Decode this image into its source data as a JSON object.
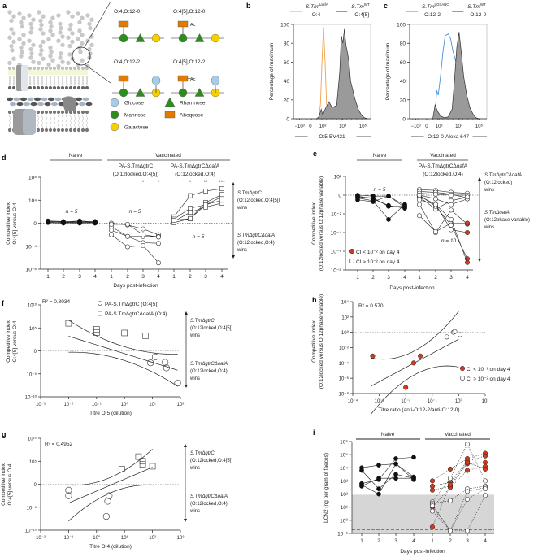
{
  "figure": {
    "panel_letters": [
      "a",
      "b",
      "c",
      "d",
      "e",
      "f",
      "g",
      "h",
      "i"
    ],
    "colors": {
      "orange": "#f0a050",
      "blue": "#4a90d9",
      "red": "#d23c1e",
      "fill_gray": "#9a9a9a",
      "shade_gray": "#d6d6d6",
      "glucose": "#a8cce8",
      "mannose": "#2e8b1e",
      "galactose": "#f5d000",
      "rhamnose": "#2e8b1e",
      "abequose": "#e07b00"
    }
  },
  "panel_a": {
    "structures": [
      {
        "label": "O:4,O:12-0",
        "abequose": true,
        "acetyl": false,
        "glucose": false
      },
      {
        "label": "O:4[5],O:12-0",
        "abequose": true,
        "acetyl": true,
        "glucose": false
      },
      {
        "label": "O:4,O:12-2",
        "abequose": true,
        "acetyl": false,
        "glucose": true
      },
      {
        "label": "O:4[5],O:12-2",
        "abequose": true,
        "acetyl": true,
        "glucose": true
      }
    ],
    "acetyl_label": "Ac",
    "legend": [
      {
        "name": "Glucose",
        "shape": "circle"
      },
      {
        "name": "Mannose",
        "shape": "circle"
      },
      {
        "name": "Galactose",
        "shape": "circle"
      },
      {
        "name": "Rhamnose",
        "shape": "triangle"
      },
      {
        "name": "Abequose",
        "shape": "rectangle"
      }
    ]
  },
  "chart_data": [
    {
      "panel": "b",
      "type": "area",
      "ylabel": "Percentage of maximum",
      "xlabel": "O:5-BV421",
      "ylim": [
        0,
        100
      ],
      "yticks": [
        "0",
        "20",
        "40",
        "60",
        "80",
        "100"
      ],
      "xticks": [
        "−10³",
        "0",
        "10³",
        "10⁴",
        "10⁵"
      ],
      "legend": [
        {
          "name": "S.TmΔoafA",
          "sub": "O:4",
          "color": "#f0a050"
        },
        {
          "name": "S.TmWT",
          "sub": "O:4[5]",
          "color": "#333333"
        }
      ],
      "series": [
        {
          "name": "S.TmΔoafA O:4",
          "x": [
            0.3,
            0.33,
            0.35,
            0.37,
            0.39,
            0.41,
            0.43,
            0.46,
            0.5,
            0.55
          ],
          "y": [
            0,
            2,
            15,
            60,
            97,
            60,
            15,
            4,
            1,
            0
          ]
        },
        {
          "name": "S.TmWT O:4[5]",
          "x": [
            0.3,
            0.33,
            0.36,
            0.38,
            0.41,
            0.46,
            0.5,
            0.53,
            0.56,
            0.6,
            0.62,
            0.64,
            0.66,
            0.68,
            0.7,
            0.72,
            0.74,
            0.77,
            0.8,
            0.84,
            0.88,
            0.92,
            0.96
          ],
          "y": [
            0,
            2,
            10,
            4,
            10,
            18,
            12,
            13,
            14,
            50,
            88,
            80,
            95,
            78,
            70,
            60,
            40,
            30,
            20,
            10,
            4,
            1,
            0
          ]
        }
      ]
    },
    {
      "panel": "c",
      "type": "area",
      "ylabel": "Percentage of maximum",
      "xlabel": "O:12-0-Alexa 647",
      "ylim": [
        0,
        100
      ],
      "yticks": [
        "0",
        "20",
        "40",
        "60",
        "80",
        "100"
      ],
      "xticks": [
        "−10³",
        "0",
        "10³",
        "10⁴",
        "10⁵"
      ],
      "legend": [
        {
          "name": "S.Tm pGtrABC",
          "sub": "O:12-2",
          "color": "#4a90d9"
        },
        {
          "name": "S.TmWT",
          "sub": "O:12-0",
          "color": "#333333"
        }
      ],
      "series": [
        {
          "name": "S.Tm pGtrABC O:12-2",
          "x": [
            0.3,
            0.33,
            0.35,
            0.37,
            0.4,
            0.43,
            0.46,
            0.5,
            0.53,
            0.56,
            0.6,
            0.63,
            0.66,
            0.7,
            0.74,
            0.78,
            0.82,
            0.86
          ],
          "y": [
            0,
            5,
            30,
            25,
            45,
            70,
            88,
            90,
            85,
            72,
            60,
            50,
            40,
            30,
            18,
            8,
            2,
            0
          ]
        },
        {
          "name": "S.TmWT O:12-0",
          "x": [
            0.3,
            0.33,
            0.36,
            0.4,
            0.45,
            0.5,
            0.55,
            0.58,
            0.61,
            0.64,
            0.67,
            0.7,
            0.74,
            0.78,
            0.82,
            0.86,
            0.9
          ],
          "y": [
            0,
            15,
            8,
            3,
            1,
            2,
            10,
            40,
            75,
            92,
            70,
            45,
            25,
            12,
            5,
            1,
            0
          ]
        }
      ]
    },
    {
      "panel": "d",
      "type": "line",
      "ylabel": "Competitive index O:4[5] versus O:4",
      "xlabel": "Days post-infection",
      "yticks": [
        "10⁸",
        "10⁴",
        "0",
        "10⁻⁴",
        "10⁻⁸"
      ],
      "ylim_log10": [
        -8,
        8
      ],
      "groups": [
        "Naive",
        "Vaccinated"
      ],
      "subgroups": [
        {
          "name": "PA-S.TmΔgtrC",
          "sub": "(O:12locked,O:4[5])",
          "stars": [
            "",
            "",
            "*",
            "*"
          ]
        },
        {
          "name": "PA-S.TmΔgtrCΔoafA",
          "sub": "(O:12locked,O:4)",
          "stars": [
            "",
            "*",
            "**",
            "***"
          ]
        }
      ],
      "n_labels": [
        "n = 5",
        "n = 5",
        "n = 5"
      ],
      "annotations": [
        {
          "text": "S.TmΔgtrC (O:12locked,O:4[5]) wins"
        },
        {
          "text": "S.TmΔgtrCΔoafA (O:12locked,O:4) wins"
        }
      ],
      "x_days": [
        1,
        2,
        3,
        4
      ],
      "series": [
        {
          "name": "Naive",
          "marker": "filled-circle",
          "lines": [
            [
              0.3,
              0.2,
              0.4,
              0.2
            ],
            [
              0.2,
              0.1,
              0.0,
              0.1
            ],
            [
              0.4,
              0.3,
              0.2,
              0.3
            ],
            [
              0.1,
              0.0,
              0.3,
              0.0
            ],
            [
              0.3,
              0.2,
              0.1,
              0.2
            ]
          ]
        },
        {
          "name": "PA-S.TmΔgtrC",
          "marker": "open-circle",
          "lines": [
            [
              0,
              -0.3,
              -1.0,
              -2.0
            ],
            [
              -0.6,
              -2.3,
              -2.3,
              -2.3
            ],
            [
              -1.2,
              -2.3,
              -3.4,
              -3.5
            ],
            [
              -2.0,
              -4.1,
              -3.9,
              -6.9
            ],
            [
              -0.2,
              -0.2,
              -2.0,
              -2.4
            ]
          ]
        },
        {
          "name": "PA-S.TmΔgtrCΔoafA",
          "marker": "open-square",
          "lines": [
            [
              1.1,
              4.8,
              5.6,
              6.0
            ],
            [
              0.7,
              2.6,
              3.2,
              4.6
            ],
            [
              0.3,
              1.9,
              2.8,
              3.5
            ],
            [
              0.1,
              0.8,
              3.6,
              5.0
            ],
            [
              0.5,
              0.8,
              3.2,
              4.0
            ]
          ]
        }
      ]
    },
    {
      "panel": "e",
      "type": "line",
      "ylabel": "Competitive index (O:12locked versus O:12phase variable)",
      "xlabel": "Days post-infection",
      "yticks": [
        "10²",
        "0",
        "10⁻²",
        "10⁻⁴",
        "10⁻⁶",
        "10⁻⁸"
      ],
      "ylim_log10": [
        -8,
        2
      ],
      "groups": [
        "Naive",
        "Vaccinated"
      ],
      "subgroups": [
        {
          "name": "PA-S.TmΔgtrCΔoafA",
          "sub": "(O:12locked,O:4)"
        }
      ],
      "n_labels": [
        "n = 5",
        "n = 10"
      ],
      "legend": [
        {
          "text": "CI < 10⁻² on day 4",
          "marker": "red-filled"
        },
        {
          "text": "CI > 10⁻² on day 4",
          "marker": "open-circle"
        }
      ],
      "annotations": [
        {
          "text": "S.TmΔgtrCΔoafA (O:12locked) wins"
        },
        {
          "text": "S.TmΔoafA (O:12phase variable) wins"
        }
      ],
      "x_days": [
        1,
        2,
        3,
        4
      ],
      "series": [
        {
          "name": "Naive",
          "marker": "filled-circle",
          "lines": [
            [
              0,
              -0.1,
              -0.1,
              -1.1
            ],
            [
              -0.2,
              -0.3,
              -1.2,
              -1.2
            ],
            [
              -0.3,
              -0.6,
              -2.6,
              -1.0
            ],
            [
              -0.5,
              -0.7,
              -0.1,
              -1.3
            ],
            [
              -0.1,
              -0.4,
              -1.1,
              -1.4
            ]
          ]
        },
        {
          "name": "Vaccinated CI>1e-2",
          "marker": "open-circle",
          "lines": [
            [
              0.6,
              0.5,
              0.3,
              0.2
            ],
            [
              0.4,
              0.3,
              0.1,
              -0.3
            ],
            [
              0.2,
              0.1,
              0.0,
              0.0
            ],
            [
              0.0,
              -0.4,
              -1.0,
              -0.4
            ],
            [
              -0.2,
              -1.5,
              -0.6,
              -0.2
            ]
          ]
        },
        {
          "name": "Vaccinated CI<1e-2",
          "marker": "red-filled",
          "lines": [
            [
              -1.0,
              -4.0,
              -1.6,
              -3.1
            ],
            [
              -2.2,
              -3.9,
              -3.0,
              -3.0
            ],
            [
              -0.1,
              -1.0,
              -3.7,
              -4.0
            ],
            [
              0.0,
              -1.2,
              -3.2,
              -6.8
            ],
            [
              -0.5,
              -1.0,
              -2.6,
              -7.2
            ]
          ]
        }
      ]
    },
    {
      "panel": "f",
      "type": "scatter",
      "r2": "R² = 0.8034",
      "ylabel": "Competitive index O:4[5] versus O:4",
      "xlabel": "Titre O:5 (dilution)",
      "xticks": [
        "10⁻³",
        "10⁻²",
        "10⁻¹",
        "10⁰",
        "10¹",
        "10²"
      ],
      "yticks": [
        "10¹⁰",
        "10⁵",
        "0",
        "10⁻⁵",
        "10⁻¹⁰"
      ],
      "xlim_log10": [
        -3,
        2
      ],
      "ylim_log10": [
        -10,
        10
      ],
      "legend": [
        {
          "text": "PA-S.TmΔgtrC (O:4[5])",
          "marker": "open-circle"
        },
        {
          "text": "PA-S.TmΔgtrCΔoafA (O:4)",
          "marker": "open-square"
        }
      ],
      "annotations": [
        {
          "text": "S.TmΔgtrC (O:12locked,O:4[5]) wins"
        },
        {
          "text": "S.TmΔgtrCΔoafA (O:12locked,O:4) wins"
        }
      ],
      "circles": [
        [
          0.93,
          -2.6
        ],
        [
          1.1,
          -1.3
        ],
        [
          1.45,
          -2.5
        ],
        [
          1.5,
          -3.7
        ],
        [
          1.9,
          -7.0
        ]
      ],
      "squares": [
        [
          -2.0,
          6.0
        ],
        [
          -1.0,
          4.7
        ],
        [
          -1.0,
          4.0
        ],
        [
          0.0,
          3.9
        ],
        [
          0.75,
          3.3
        ]
      ],
      "fit": {
        "slope": -1.9,
        "intercept": -0.6,
        "ci": 2.5,
        "x": [
          -2.0,
          1.9
        ]
      }
    },
    {
      "panel": "g",
      "type": "scatter",
      "r2": "R² = 0.4952",
      "ylabel": "Competitive index O:4[5] versus O:4",
      "xlabel": "Titre O:4 (dilution)",
      "xticks": [
        "10⁻²",
        "10⁻¹",
        "10⁰",
        "10¹",
        "10²",
        "10³"
      ],
      "yticks": [
        "10¹⁰",
        "10⁵",
        "0",
        "10⁻⁵",
        "10⁻¹⁰"
      ],
      "xlim_log10": [
        -2,
        3
      ],
      "ylim_log10": [
        -10,
        10
      ],
      "annotations": [
        {
          "text": "S.TmΔgtrC (O:12locked,O:4[5]) wins"
        },
        {
          "text": "S.TmΔgtrCΔoafA (O:12locked,O:4) wins"
        }
      ],
      "circles": [
        [
          -1.0,
          -1.3
        ],
        [
          -1.0,
          -2.5
        ],
        [
          0.45,
          -2.5
        ],
        [
          0.4,
          -3.7
        ],
        [
          0.35,
          -7.0
        ]
      ],
      "squares": [
        [
          0.9,
          3.3
        ],
        [
          1.5,
          6.0
        ],
        [
          1.65,
          5.0
        ],
        [
          1.65,
          4.3
        ],
        [
          2.0,
          3.9
        ]
      ],
      "fit": {
        "slope": 2.6,
        "intercept": -1.5,
        "ci": 2.8,
        "x": [
          -1.0,
          2.0
        ]
      }
    },
    {
      "panel": "h",
      "type": "scatter",
      "r2": "R² = 0.570",
      "ylabel": "Competitive index (O:12locked versus O:12phase variable)",
      "xlabel": "Titre ratio (anti-O:12-2/anti-O:12-0)",
      "xticks": [
        "10⁻⁴",
        "10⁻³",
        "10⁻²",
        "10⁻¹",
        "10⁰",
        "10¹"
      ],
      "yticks": [
        "10⁴",
        "10²",
        "10⁰",
        "10⁻²",
        "10⁻⁴",
        "10⁻⁶",
        "10⁻⁸"
      ],
      "xlim_log10": [
        -4,
        1
      ],
      "ylim_log10": [
        -8,
        4
      ],
      "legend": [
        {
          "text": "CI < 10⁻² on day 4",
          "marker": "red-filled"
        },
        {
          "text": "CI > 10⁻² on day 4",
          "marker": "open-circle"
        }
      ],
      "red_points": [
        [
          -3.25,
          -3.1
        ],
        [
          -2.0,
          -7.2
        ],
        [
          -1.7,
          -4.0
        ],
        [
          -1.45,
          -3.1
        ]
      ],
      "open_points": [
        [
          -0.45,
          -0.6
        ],
        [
          -0.2,
          0.0
        ],
        [
          -0.15,
          0.1
        ],
        [
          0.05,
          -0.3
        ]
      ],
      "fit": {
        "slope": 1.85,
        "intercept": -0.9,
        "ci": 2.6,
        "x": [
          -3.3,
          0.0
        ]
      }
    },
    {
      "panel": "i",
      "type": "line",
      "ylabel": "LCN2 (ng per gram of faeces)",
      "xlabel": "Days post-infection",
      "yticks": [
        "10⁶",
        "10⁵",
        "10⁴",
        "10³",
        "10²",
        "10¹",
        "10⁰",
        "10⁻¹"
      ],
      "ylim_log10": [
        -1,
        6
      ],
      "groups": [
        "Naive",
        "Vaccinated"
      ],
      "detection_limit_log10": -0.7,
      "shaded_upper_log10": 1.95,
      "x_days": [
        1,
        2,
        3,
        4
      ],
      "series": [
        {
          "name": "Naive",
          "marker": "filled-circle",
          "style": "solid",
          "lines": [
            [
              4.0,
              4.2,
              4.3,
              3.3
            ],
            [
              3.8,
              2.4,
              3.5,
              3.2
            ],
            [
              2.8,
              3.1,
              4.7,
              4.8
            ],
            [
              2.7,
              2.0,
              4.3,
              3.1
            ],
            [
              2.6,
              3.2,
              3.2,
              3.2
            ]
          ]
        },
        {
          "name": "Vaccinated red",
          "marker": "red-filled",
          "style": "dotted",
          "lines": [
            [
              3.0,
              3.9,
              4.7,
              5.1
            ],
            [
              2.6,
              2.9,
              4.5,
              4.9
            ],
            [
              2.3,
              2.6,
              4.3,
              4.4
            ],
            [
              1.0,
              2.5,
              3.8,
              4.1
            ],
            [
              -0.5,
              2.7,
              4.4,
              3.9
            ]
          ]
        },
        {
          "name": "Vaccinated open",
          "marker": "open-circle",
          "style": "dotted",
          "lines": [
            [
              1.4,
              3.2,
              5.8,
              3.0
            ],
            [
              1.3,
              1.5,
              2.4,
              2.6
            ],
            [
              1.2,
              -0.8,
              2.2,
              2.5
            ],
            [
              1.1,
              -0.8,
              1.6,
              2.4
            ],
            [
              0.7,
              -0.8,
              -0.8,
              1.9
            ]
          ]
        }
      ]
    }
  ]
}
